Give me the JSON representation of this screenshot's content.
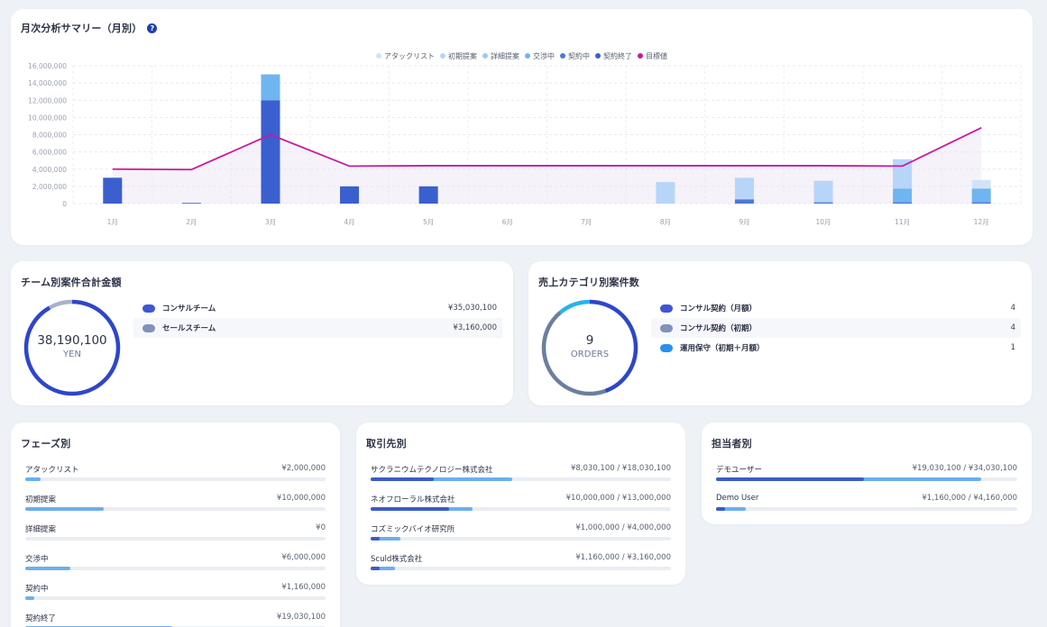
{
  "colors": {
    "attack": "#d3e3f7",
    "initial": "#b7d5f8",
    "detail": "#9ccaf5",
    "negotiating": "#6fb5f0",
    "contracting": "#4e79d5",
    "contracted": "#3a5fcf",
    "target": "#c41ca0"
  },
  "monthly": {
    "title": "月次分析サマリー（月別）",
    "help_icon": "question-circle-icon",
    "legend": [
      {
        "label": "アタックリスト",
        "color": "#d3e3f7"
      },
      {
        "label": "初期提案",
        "color": "#b7d5f8"
      },
      {
        "label": "詳細提案",
        "color": "#9ccaf5"
      },
      {
        "label": "交渉中",
        "color": "#6fb5f0"
      },
      {
        "label": "契約中",
        "color": "#4e79d5"
      },
      {
        "label": "契約終了",
        "color": "#3a5fcf"
      },
      {
        "label": "目標値",
        "color": "#c41ca0"
      }
    ]
  },
  "chart_data": {
    "type": "bar",
    "title": "月次分析サマリー（月別）",
    "categories": [
      "1月",
      "2月",
      "3月",
      "4月",
      "5月",
      "6月",
      "7月",
      "8月",
      "9月",
      "10月",
      "11月",
      "12月"
    ],
    "ylim": [
      0,
      16000000
    ],
    "yticks": [
      "0",
      "2,000,000",
      "4,000,000",
      "6,000,000",
      "8,000,000",
      "10,000,000",
      "12,000,000",
      "14,000,000",
      "16,000,000"
    ],
    "stacked": true,
    "series": [
      {
        "name": "契約終了",
        "color": "#3a5fcf",
        "values": [
          3000000,
          80000,
          12000000,
          2000000,
          2000000,
          0,
          0,
          0,
          0,
          0,
          0,
          0
        ]
      },
      {
        "name": "契約中",
        "color": "#4e79d5",
        "values": [
          0,
          0,
          0,
          0,
          0,
          0,
          0,
          0,
          500000,
          150000,
          150000,
          150000
        ]
      },
      {
        "name": "交渉中",
        "color": "#6fb5f0",
        "values": [
          0,
          0,
          3000000,
          0,
          0,
          0,
          0,
          0,
          0,
          0,
          1600000,
          1600000
        ]
      },
      {
        "name": "詳細提案",
        "color": "#9ccaf5",
        "values": [
          0,
          0,
          0,
          0,
          0,
          0,
          0,
          0,
          0,
          0,
          0,
          0
        ]
      },
      {
        "name": "初期提案",
        "color": "#b7d5f8",
        "values": [
          0,
          0,
          0,
          0,
          0,
          0,
          0,
          2500000,
          2500000,
          2500000,
          3400000,
          0
        ]
      },
      {
        "name": "アタックリスト",
        "color": "#d3e3f7",
        "values": [
          0,
          0,
          0,
          0,
          0,
          0,
          0,
          0,
          0,
          0,
          0,
          1000000
        ]
      }
    ],
    "line": {
      "name": "目標値",
      "color": "#c41ca0",
      "values": [
        4000000,
        3950000,
        8000000,
        4350000,
        4400000,
        4400000,
        4400000,
        4400000,
        4400000,
        4400000,
        4350000,
        8800000
      ]
    }
  },
  "team": {
    "title": "チーム別案件合計金額",
    "total": "38,190,100",
    "unit": "YEN",
    "items": [
      {
        "label": "コンサルチーム",
        "value": "¥35,030,100",
        "color": "#3f55d6"
      },
      {
        "label": "セールスチーム",
        "value": "¥3,160,000",
        "color": "#7f93b8"
      }
    ],
    "ring_segments": [
      {
        "fraction": 0.917,
        "color": "#2e46c9"
      },
      {
        "fraction": 0.083,
        "color": "#a7b2cc"
      }
    ]
  },
  "category": {
    "title": "売上カテゴリ別案件数",
    "total": "9",
    "unit": "ORDERS",
    "items": [
      {
        "label": "コンサル契約（月額）",
        "value": "4",
        "color": "#3f55d6"
      },
      {
        "label": "コンサル契約（初期）",
        "value": "4",
        "color": "#7f93b8"
      },
      {
        "label": "運用保守（初期＋月額）",
        "value": "1",
        "color": "#2a8ff0"
      }
    ],
    "ring_segments": [
      {
        "fraction": 0.444,
        "color": "#2e46c9"
      },
      {
        "fraction": 0.444,
        "color": "#6b7f9e"
      },
      {
        "fraction": 0.112,
        "color": "#27b3ec"
      }
    ]
  },
  "phase": {
    "title": "フェーズ別",
    "items": [
      {
        "label": "アタックリスト",
        "amount": "¥2,000,000",
        "fraction": 0.05
      },
      {
        "label": "初期提案",
        "amount": "¥10,000,000",
        "fraction": 0.26
      },
      {
        "label": "詳細提案",
        "amount": "¥0",
        "fraction": 0.0
      },
      {
        "label": "交渉中",
        "amount": "¥6,000,000",
        "fraction": 0.15
      },
      {
        "label": "契約中",
        "amount": "¥1,160,000",
        "fraction": 0.03
      },
      {
        "label": "契約終了",
        "amount": "¥19,030,100",
        "fraction": 0.49
      }
    ]
  },
  "client": {
    "title": "取引先別",
    "items": [
      {
        "label": "サクラニウムテクノロジー株式会社",
        "amount": "¥8,030,100 / ¥18,030,100",
        "actual": 0.21,
        "total": 0.47
      },
      {
        "label": "ネオフローラル株式会社",
        "amount": "¥10,000,000 / ¥13,000,000",
        "actual": 0.26,
        "total": 0.34
      },
      {
        "label": "コズミックバイオ研究所",
        "amount": "¥1,000,000 / ¥4,000,000",
        "actual": 0.03,
        "total": 0.1
      },
      {
        "label": "Sculd株式会社",
        "amount": "¥1,160,000 / ¥3,160,000",
        "actual": 0.03,
        "total": 0.08
      }
    ]
  },
  "person": {
    "title": "担当者別",
    "items": [
      {
        "label": "デモユーザー",
        "amount": "¥19,030,100 / ¥34,030,100",
        "actual": 0.49,
        "total": 0.88
      },
      {
        "label": "Demo User",
        "amount": "¥1,160,000 / ¥4,160,000",
        "actual": 0.03,
        "total": 0.1
      }
    ]
  }
}
